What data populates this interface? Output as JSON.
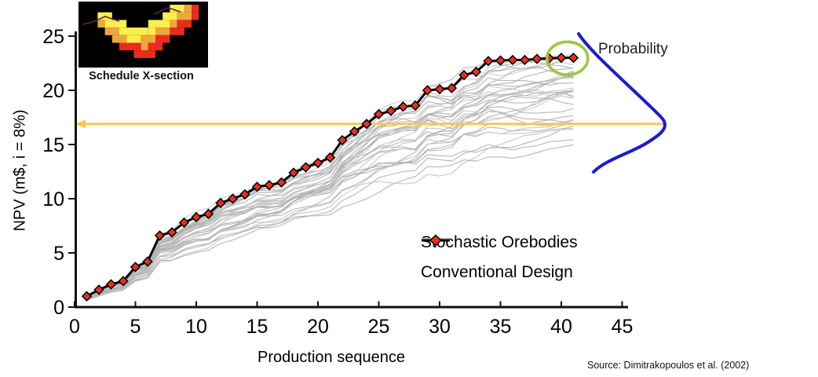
{
  "figure": {
    "probability_label": "Probability",
    "source": "Source: Dimitrakopoulos et al. (2002)",
    "inset": {
      "label": "Schedule X-section",
      "colors": {
        "background": "#000000",
        "yellow": "#FBEF4B",
        "orange": "#F0A63C",
        "red": "#EA2B1F",
        "purple": "#5E1F63"
      },
      "blocks": {
        "yellow": [
          [
            2,
            2,
            3
          ],
          [
            3,
            3,
            5
          ],
          [
            4,
            5,
            8
          ],
          [
            5,
            6,
            7
          ],
          [
            4,
            9,
            9
          ],
          [
            3,
            9,
            11
          ],
          [
            2,
            11,
            12
          ],
          [
            1,
            12,
            13
          ]
        ],
        "orange": [
          [
            3,
            2,
            2
          ],
          [
            4,
            3,
            4
          ],
          [
            5,
            4,
            5
          ],
          [
            5,
            8,
            9
          ],
          [
            6,
            8,
            8
          ],
          [
            4,
            10,
            11
          ],
          [
            3,
            12,
            12
          ],
          [
            2,
            13,
            14
          ],
          [
            1,
            14,
            14
          ]
        ],
        "red": [
          [
            6,
            5,
            7
          ],
          [
            7,
            7,
            9
          ],
          [
            6,
            9,
            10
          ],
          [
            5,
            10,
            11
          ],
          [
            4,
            12,
            13
          ],
          [
            3,
            13,
            14
          ],
          [
            2,
            15,
            15
          ],
          [
            1,
            15,
            15
          ]
        ]
      },
      "contour_lines": [
        [
          [
            106,
            31
          ],
          [
            118,
            28
          ],
          [
            134,
            21
          ],
          [
            152,
            27
          ]
        ],
        [
          [
            196,
            18
          ],
          [
            214,
            10
          ],
          [
            230,
            15
          ]
        ]
      ]
    }
  },
  "chart_data": {
    "type": "line",
    "title": "",
    "xlabel": "Production sequence",
    "ylabel": "NPV (m$, i = 8%)",
    "xlim": [
      0,
      45
    ],
    "ylim": [
      0,
      25
    ],
    "xticks": [
      0,
      5,
      10,
      15,
      20,
      25,
      30,
      35,
      40,
      45
    ],
    "yticks": [
      0,
      5,
      10,
      15,
      20,
      25
    ],
    "grid": false,
    "legend_position": "inside lower right",
    "x": [
      1,
      2,
      3,
      4,
      5,
      6,
      7,
      8,
      9,
      10,
      11,
      12,
      13,
      14,
      15,
      16,
      17,
      18,
      19,
      20,
      21,
      22,
      23,
      24,
      25,
      26,
      27,
      28,
      29,
      30,
      31,
      32,
      33,
      34,
      35,
      36,
      37,
      38,
      39,
      40,
      41
    ],
    "series": [
      {
        "name": "Stochastic Orebodies",
        "color": "#b3b3b3",
        "count": 34,
        "note": "band of simulated orebody NPV curves scaled from conventional profile; ends at sequence 41 spanning ~14 to ~21.5 m$",
        "factors": [
          1.01,
          0.99,
          0.975,
          0.965,
          0.955,
          0.945,
          0.935,
          0.925,
          0.915,
          0.905,
          0.895,
          0.885,
          0.875,
          0.865,
          0.855,
          0.845,
          0.835,
          0.825,
          0.815,
          0.805,
          0.795,
          0.785,
          0.775,
          0.765,
          0.755,
          0.745,
          0.735,
          0.72,
          0.7,
          0.68,
          0.66,
          0.635,
          0.93,
          0.86
        ]
      },
      {
        "name": "Conventional Design",
        "line_color": "#000000",
        "marker": "diamond",
        "marker_color": "#E5311E",
        "values": [
          1.0,
          1.6,
          2.1,
          2.4,
          3.7,
          4.2,
          6.6,
          6.9,
          7.8,
          8.3,
          8.6,
          9.6,
          10.0,
          10.4,
          11.1,
          11.25,
          11.5,
          12.4,
          12.9,
          13.3,
          13.8,
          15.4,
          16.2,
          16.9,
          17.8,
          18.1,
          18.5,
          18.6,
          20.0,
          20.1,
          20.2,
          21.4,
          21.7,
          22.7,
          22.75,
          22.8,
          22.8,
          22.9,
          22.95,
          23.0,
          23.0
        ]
      }
    ],
    "annotations": {
      "mean_arrow": {
        "npv": 16.9,
        "color": "#F8C94B",
        "direction": "left",
        "note": "horizontal arrow from probability-curve peak to y-axis"
      },
      "probability_curve": {
        "color": "#1B1BCE",
        "center_npv": 16.9
      },
      "highlight_circle": {
        "seq": 40.5,
        "npv": 23.6,
        "color": "#9CC83C",
        "note": "green ellipse around final conventional-design points"
      }
    }
  }
}
